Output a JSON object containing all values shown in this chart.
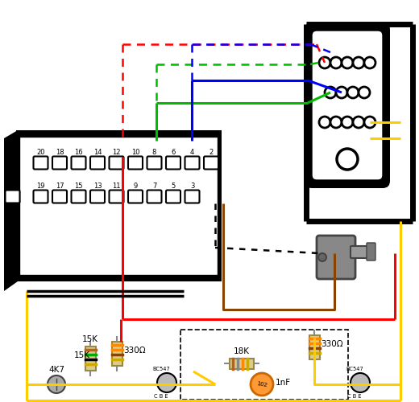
{
  "bg": "#ffffff",
  "red": "#ff0000",
  "green": "#00bb00",
  "blue": "#0000ff",
  "yellow": "#ffcc00",
  "brown": "#884400",
  "black": "#000000",
  "gray": "#888888",
  "dkgray": "#444444",
  "ltgray": "#aaaaaa",
  "resistor_body": "#ddcc88",
  "resistor_edge": "#998844",
  "pin_labels_top": [
    "20",
    "18",
    "16",
    "14",
    "12",
    "10",
    "8",
    "6",
    "4",
    "2"
  ],
  "pin_labels_bot": [
    "19",
    "17",
    "15",
    "13",
    "11",
    "9",
    "7",
    "5",
    "3"
  ],
  "lw_wire": 2.2,
  "lw_dash": 1.8
}
